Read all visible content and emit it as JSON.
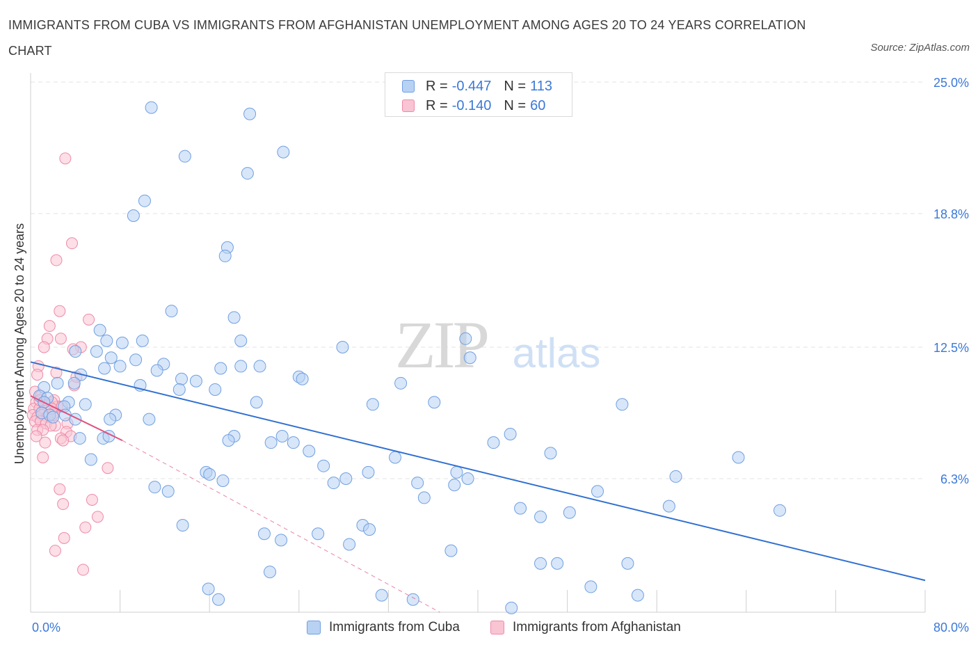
{
  "title": "IMMIGRANTS FROM CUBA VS IMMIGRANTS FROM AFGHANISTAN UNEMPLOYMENT AMONG AGES 20 TO 24 YEARS CORRELATION CHART",
  "source": "Source: ZipAtlas.com",
  "watermark": {
    "zip": "ZIP",
    "atlas": "atlas"
  },
  "colors": {
    "cuba_fill": "#b8d2f4",
    "cuba_stroke": "#6f9fe0",
    "cuba_line": "#2f6fd0",
    "afg_fill": "#f9c4d3",
    "afg_stroke": "#ee8aa8",
    "afg_line": "#e0507e",
    "axis_text": "#3a78d8",
    "grid": "#e3e3e3"
  },
  "legend": {
    "rows": [
      {
        "r_label": "R =",
        "r_value": "-0.447",
        "n_label": "N =",
        "n_value": "113"
      },
      {
        "r_label": "R =",
        "r_value": "-0.140",
        "n_label": "N =",
        "n_value": "60"
      }
    ]
  },
  "bottom_legend": {
    "cuba": "Immigrants from Cuba",
    "afghanistan": "Immigrants from Afghanistan"
  },
  "chart_data": {
    "type": "scatter",
    "title": "IMMIGRANTS FROM CUBA VS IMMIGRANTS FROM AFGHANISTAN UNEMPLOYMENT AMONG AGES 20 TO 24 YEARS CORRELATION CHART",
    "xlabel": "",
    "ylabel": "Unemployment Among Ages 20 to 24 years",
    "xlim": [
      0,
      80
    ],
    "ylim": [
      0,
      25.0
    ],
    "x_tick_labels": [
      "0.0%",
      "80.0%"
    ],
    "y_tick_values": [
      6.3,
      12.5,
      18.8,
      25.0
    ],
    "y_tick_labels": [
      "6.3%",
      "12.5%",
      "18.8%",
      "25.0%"
    ],
    "series": [
      {
        "name": "Immigrants from Cuba",
        "R": -0.447,
        "N": 113,
        "trend": {
          "x": [
            0,
            80
          ],
          "y": [
            11.8,
            1.5
          ]
        },
        "points": [
          [
            10.8,
            23.8
          ],
          [
            19.6,
            23.5
          ],
          [
            22.6,
            21.7
          ],
          [
            13.8,
            21.5
          ],
          [
            19.4,
            20.7
          ],
          [
            10.2,
            19.4
          ],
          [
            9.2,
            18.7
          ],
          [
            17.6,
            17.2
          ],
          [
            17.4,
            16.8
          ],
          [
            12.6,
            14.2
          ],
          [
            18.2,
            13.9
          ],
          [
            6.2,
            13.3
          ],
          [
            6.8,
            12.8
          ],
          [
            8.2,
            12.7
          ],
          [
            10.0,
            12.8
          ],
          [
            18.8,
            12.8
          ],
          [
            27.9,
            12.5
          ],
          [
            38.9,
            12.9
          ],
          [
            4.0,
            12.3
          ],
          [
            5.9,
            12.3
          ],
          [
            7.2,
            12.0
          ],
          [
            9.4,
            11.9
          ],
          [
            11.9,
            11.7
          ],
          [
            8.0,
            11.6
          ],
          [
            11.3,
            11.4
          ],
          [
            6.6,
            11.5
          ],
          [
            18.8,
            11.6
          ],
          [
            20.5,
            11.6
          ],
          [
            39.3,
            12.0
          ],
          [
            17.0,
            11.5
          ],
          [
            4.5,
            11.2
          ],
          [
            13.5,
            11.0
          ],
          [
            14.8,
            10.9
          ],
          [
            24.0,
            11.1
          ],
          [
            24.3,
            11.0
          ],
          [
            9.8,
            10.7
          ],
          [
            1.2,
            10.6
          ],
          [
            2.4,
            10.8
          ],
          [
            3.9,
            10.8
          ],
          [
            13.3,
            10.5
          ],
          [
            16.5,
            10.5
          ],
          [
            33.1,
            10.8
          ],
          [
            0.8,
            10.2
          ],
          [
            1.5,
            10.1
          ],
          [
            3.4,
            9.9
          ],
          [
            3.0,
            9.7
          ],
          [
            1.2,
            9.9
          ],
          [
            4.9,
            9.8
          ],
          [
            20.2,
            9.9
          ],
          [
            30.6,
            9.8
          ],
          [
            36.1,
            9.9
          ],
          [
            52.9,
            9.8
          ],
          [
            1.0,
            9.4
          ],
          [
            1.7,
            9.3
          ],
          [
            2.0,
            9.2
          ],
          [
            3.1,
            9.3
          ],
          [
            4.0,
            9.1
          ],
          [
            7.6,
            9.3
          ],
          [
            10.6,
            9.1
          ],
          [
            7.1,
            9.1
          ],
          [
            4.4,
            8.2
          ],
          [
            6.5,
            8.2
          ],
          [
            7.0,
            8.3
          ],
          [
            18.2,
            8.3
          ],
          [
            22.5,
            8.3
          ],
          [
            17.7,
            8.1
          ],
          [
            21.5,
            8.0
          ],
          [
            23.5,
            8.0
          ],
          [
            41.4,
            8.0
          ],
          [
            42.9,
            8.4
          ],
          [
            5.4,
            7.2
          ],
          [
            24.9,
            7.6
          ],
          [
            26.2,
            6.9
          ],
          [
            32.6,
            7.3
          ],
          [
            46.5,
            7.5
          ],
          [
            63.3,
            7.3
          ],
          [
            15.7,
            6.6
          ],
          [
            16.0,
            6.5
          ],
          [
            17.2,
            6.2
          ],
          [
            27.1,
            6.1
          ],
          [
            28.2,
            6.3
          ],
          [
            30.2,
            6.6
          ],
          [
            34.6,
            6.1
          ],
          [
            38.1,
            6.6
          ],
          [
            39.1,
            6.3
          ],
          [
            57.7,
            6.4
          ],
          [
            11.1,
            5.9
          ],
          [
            12.3,
            5.7
          ],
          [
            35.2,
            5.4
          ],
          [
            37.9,
            6.0
          ],
          [
            50.7,
            5.7
          ],
          [
            43.8,
            4.9
          ],
          [
            45.6,
            4.5
          ],
          [
            48.2,
            4.7
          ],
          [
            57.1,
            5.0
          ],
          [
            67.0,
            4.8
          ],
          [
            13.6,
            4.1
          ],
          [
            29.7,
            4.1
          ],
          [
            30.3,
            3.9
          ],
          [
            20.9,
            3.7
          ],
          [
            22.4,
            3.4
          ],
          [
            25.7,
            3.7
          ],
          [
            28.5,
            3.2
          ],
          [
            37.6,
            2.9
          ],
          [
            21.4,
            1.9
          ],
          [
            45.6,
            2.3
          ],
          [
            47.1,
            2.3
          ],
          [
            53.4,
            2.3
          ],
          [
            15.9,
            1.1
          ],
          [
            16.8,
            0.6
          ],
          [
            31.4,
            0.8
          ],
          [
            50.1,
            1.2
          ],
          [
            54.3,
            0.8
          ],
          [
            34.2,
            0.6
          ],
          [
            43.0,
            0.2
          ]
        ]
      },
      {
        "name": "Immigrants from Afghanistan",
        "R": -0.14,
        "N": 60,
        "trend": {
          "x": [
            0,
            8.2
          ],
          "y": [
            10.2,
            8.1
          ]
        },
        "trend_extended": {
          "x": [
            8.2,
            36.6
          ],
          "y": [
            8.1,
            0.0
          ]
        },
        "points": [
          [
            3.1,
            21.4
          ],
          [
            3.7,
            17.4
          ],
          [
            2.3,
            16.6
          ],
          [
            2.6,
            14.2
          ],
          [
            5.2,
            13.8
          ],
          [
            1.7,
            13.5
          ],
          [
            2.7,
            12.9
          ],
          [
            1.5,
            12.9
          ],
          [
            4.5,
            12.5
          ],
          [
            1.2,
            12.5
          ],
          [
            3.8,
            12.4
          ],
          [
            0.7,
            11.6
          ],
          [
            0.6,
            11.2
          ],
          [
            2.3,
            11.3
          ],
          [
            3.9,
            10.7
          ],
          [
            4.1,
            11.1
          ],
          [
            0.4,
            10.4
          ],
          [
            0.9,
            10.2
          ],
          [
            2.1,
            10.0
          ],
          [
            0.5,
            9.9
          ],
          [
            1.2,
            9.9
          ],
          [
            1.6,
            9.8
          ],
          [
            2.4,
            9.7
          ],
          [
            1.9,
            9.9
          ],
          [
            0.3,
            9.6
          ],
          [
            0.8,
            9.6
          ],
          [
            1.3,
            9.5
          ],
          [
            2.1,
            9.4
          ],
          [
            0.2,
            9.3
          ],
          [
            0.6,
            9.2
          ],
          [
            1.0,
            9.3
          ],
          [
            1.5,
            9.2
          ],
          [
            2.0,
            9.3
          ],
          [
            0.4,
            9.0
          ],
          [
            0.9,
            9.0
          ],
          [
            1.4,
            8.9
          ],
          [
            2.2,
            8.8
          ],
          [
            3.3,
            8.9
          ],
          [
            1.8,
            8.8
          ],
          [
            0.6,
            8.6
          ],
          [
            1.1,
            8.6
          ],
          [
            3.2,
            8.5
          ],
          [
            3.6,
            8.3
          ],
          [
            2.7,
            8.2
          ],
          [
            1.3,
            8.0
          ],
          [
            2.9,
            8.1
          ],
          [
            1.1,
            7.3
          ],
          [
            6.9,
            6.8
          ],
          [
            2.6,
            5.8
          ],
          [
            5.5,
            5.3
          ],
          [
            2.9,
            5.1
          ],
          [
            6.0,
            4.5
          ],
          [
            4.9,
            4.0
          ],
          [
            3.0,
            3.5
          ],
          [
            2.2,
            2.9
          ],
          [
            4.7,
            2.0
          ],
          [
            0.5,
            8.3
          ],
          [
            1.9,
            9.6
          ],
          [
            0.8,
            10.0
          ],
          [
            2.8,
            9.7
          ]
        ]
      }
    ]
  }
}
